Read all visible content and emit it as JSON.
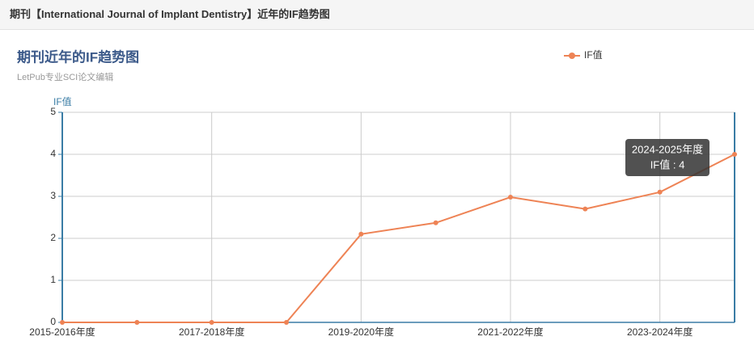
{
  "header": {
    "title": "期刊【International Journal of Implant Dentistry】近年的IF趋势图"
  },
  "chart_data": {
    "type": "line",
    "title": "期刊近年的IF趋势图",
    "subtitle": "LetPub专业SCI论文编辑",
    "y_label": "IF值",
    "categories": [
      "2015-2016年度",
      null,
      "2017-2018年度",
      null,
      "2019-2020年度",
      null,
      "2021-2022年度",
      null,
      "2023-2024年度",
      null
    ],
    "series": [
      {
        "name": "IF值",
        "color": "#ee8355",
        "values": [
          0,
          0,
          0,
          0,
          2.1,
          2.37,
          2.98,
          2.7,
          3.1,
          4
        ]
      }
    ],
    "ylim": [
      0,
      5
    ],
    "yticks": [
      0,
      1,
      2,
      3,
      4,
      5
    ],
    "grid": true,
    "legend": "top-right",
    "tooltip": {
      "title": "2024-2025年度",
      "text": "IF值 : 4"
    }
  }
}
